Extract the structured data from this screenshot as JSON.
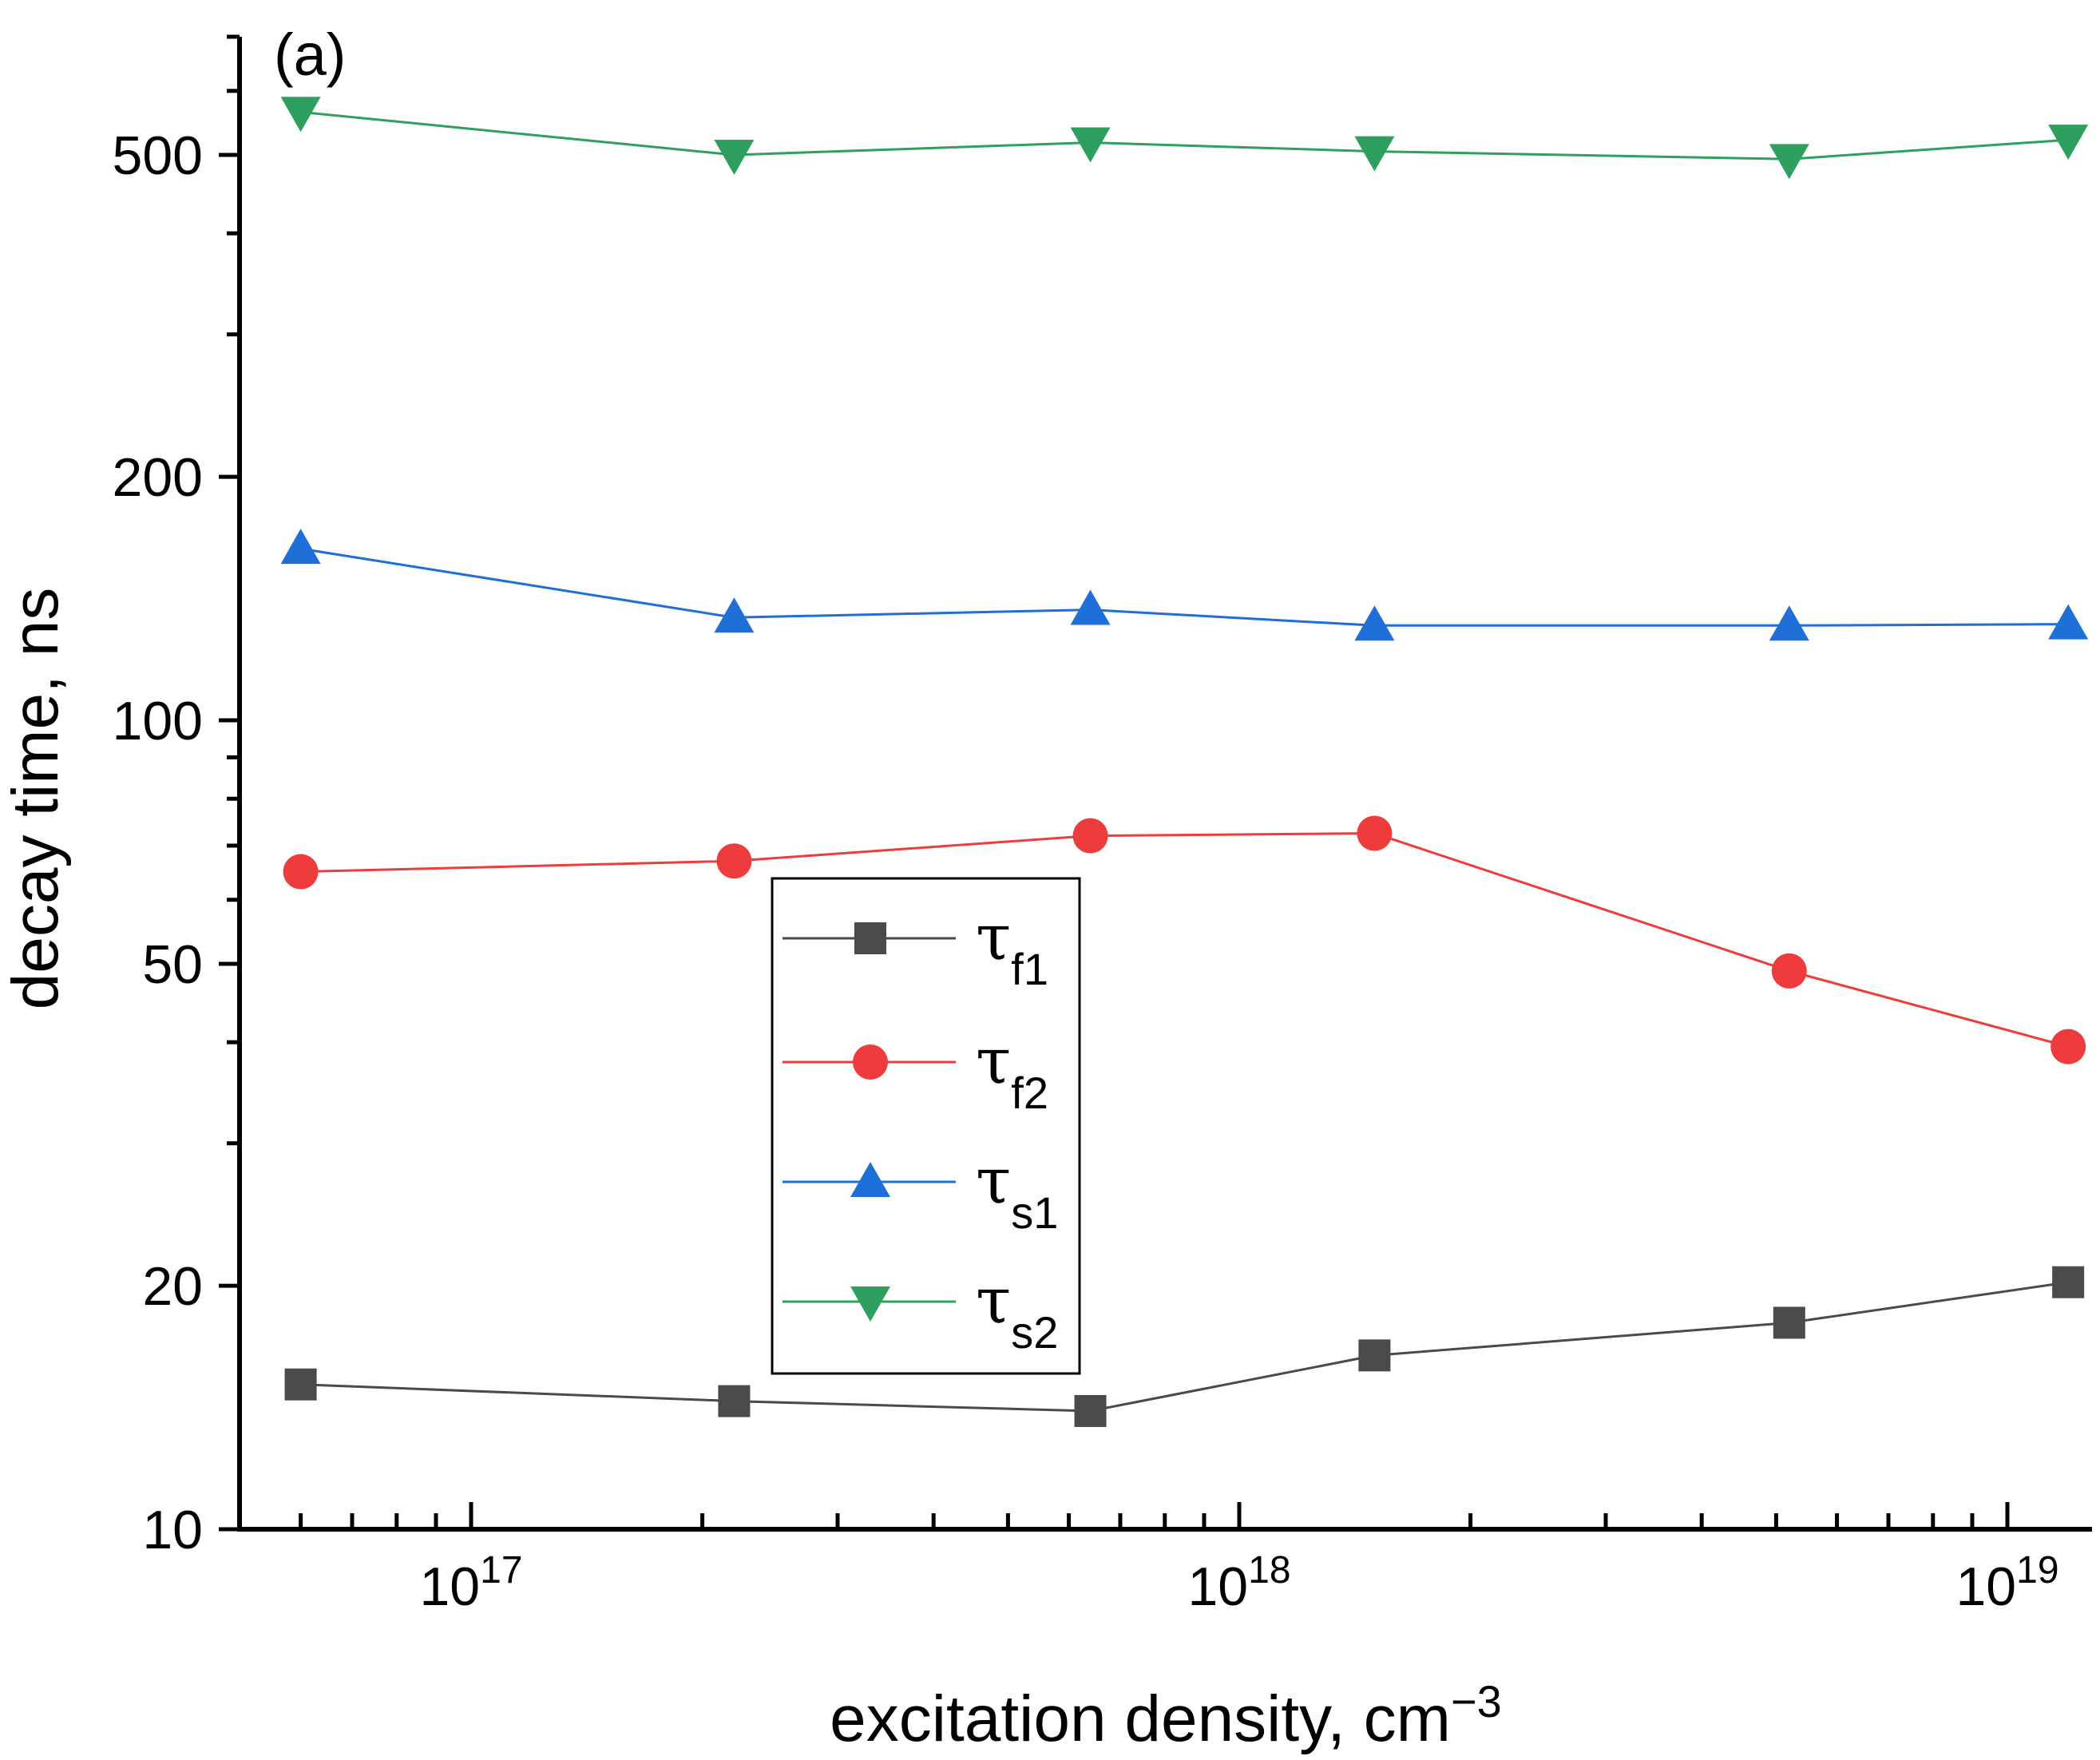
{
  "chart_data": {
    "type": "line",
    "panel_label": "(a)",
    "xlabel": "excitation density, cm",
    "xlabel_sup": "−3",
    "ylabel": "decay time, ns",
    "xscale": "log",
    "yscale": "log",
    "xlim": [
      5e+16,
      1.3e+19
    ],
    "ylim": [
      10,
      700
    ],
    "x_tick_labels": [
      {
        "value": 1e+17,
        "base": "10",
        "exp": "17"
      },
      {
        "value": 1e+18,
        "base": "10",
        "exp": "18"
      },
      {
        "value": 1e+19,
        "base": "10",
        "exp": "19"
      }
    ],
    "y_tick_labels": [
      {
        "value": 10,
        "label": "10"
      },
      {
        "value": 20,
        "label": "20"
      },
      {
        "value": 50,
        "label": "50"
      },
      {
        "value": 100,
        "label": "100"
      },
      {
        "value": 200,
        "label": "200"
      },
      {
        "value": 500,
        "label": "500"
      }
    ],
    "x": [
      6e+16,
      2.2e+17,
      6.4e+17,
      1.5e+18,
      5.2e+18,
      1.2e+19
    ],
    "series": [
      {
        "name": "τf1",
        "symbol": "τ",
        "sub": "f1",
        "color": "#4a4a4a",
        "marker": "square",
        "values": [
          15.1,
          14.4,
          14.0,
          16.4,
          18.0,
          20.2
        ]
      },
      {
        "name": "τf2",
        "symbol": "τ",
        "sub": "f2",
        "color": "#ee3b3b",
        "marker": "circle",
        "values": [
          65,
          67,
          72,
          72.5,
          49,
          39.5
        ]
      },
      {
        "name": "τs1",
        "symbol": "τ",
        "sub": "s1",
        "color": "#1f6fd8",
        "marker": "triangle-up",
        "values": [
          163,
          134,
          137,
          131,
          131,
          131.5
        ]
      },
      {
        "name": "τs2",
        "symbol": "τ",
        "sub": "s2",
        "color": "#2e9f5e",
        "marker": "triangle-down",
        "values": [
          565,
          500,
          518,
          505,
          494,
          522
        ]
      }
    ],
    "legend_position": "center",
    "grid": false
  }
}
